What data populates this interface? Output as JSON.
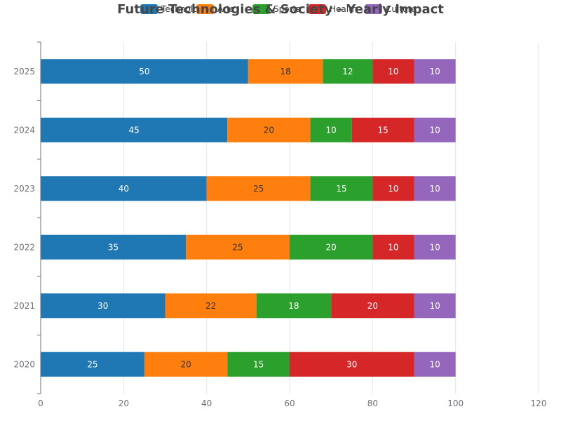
{
  "chart_data": {
    "type": "bar",
    "orientation": "horizontal",
    "stacked": true,
    "title": "Future Technologies & Society - Yearly Impact",
    "categories": [
      "2020",
      "2021",
      "2022",
      "2023",
      "2024",
      "2025"
    ],
    "series": [
      {
        "name": "Technology",
        "color": "#1f77b4",
        "label_color": "#ffffff",
        "values": [
          25,
          30,
          35,
          40,
          45,
          50
        ]
      },
      {
        "name": "Arts",
        "color": "#ff7f0e",
        "label_color": "#333333",
        "values": [
          20,
          22,
          25,
          25,
          20,
          18
        ]
      },
      {
        "name": "Sports",
        "color": "#2ca02c",
        "label_color": "#ffffff",
        "values": [
          15,
          18,
          20,
          15,
          10,
          12
        ]
      },
      {
        "name": "Health",
        "color": "#d62728",
        "label_color": "#ffffff",
        "values": [
          30,
          20,
          10,
          10,
          15,
          10
        ]
      },
      {
        "name": "Culture",
        "color": "#9467bd",
        "label_color": "#ffffff",
        "values": [
          10,
          10,
          10,
          10,
          10,
          10
        ]
      }
    ],
    "xlim": [
      0,
      120
    ],
    "x_ticks": [
      0,
      20,
      40,
      60,
      80,
      100,
      120
    ],
    "grid": true,
    "legend_position": "top-center"
  }
}
